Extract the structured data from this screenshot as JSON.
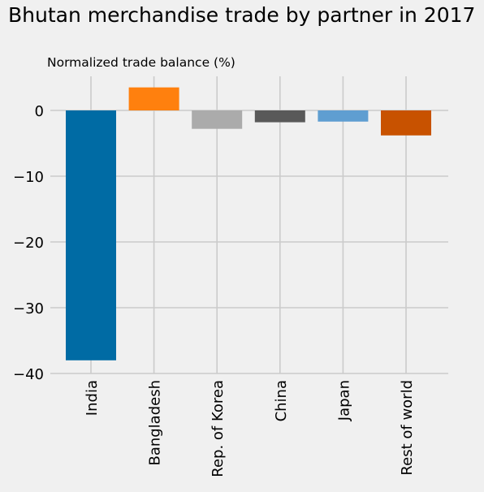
{
  "title": "Bhutan merchandise trade by partner in 2017",
  "chart_data": {
    "type": "bar",
    "title": "Bhutan merchandise trade by partner in 2017",
    "ylabel": "Normalized trade balance (%)",
    "xlabel": "",
    "categories": [
      "India",
      "Bangladesh",
      "Rep. of Korea",
      "China",
      "Japan",
      "Rest of world"
    ],
    "values": [
      -38.0,
      3.5,
      -2.8,
      -1.8,
      -1.7,
      -3.8
    ],
    "colors": [
      "#006ba4",
      "#ff800e",
      "#ababab",
      "#595959",
      "#5f9ed1",
      "#c85200"
    ],
    "ylim": [
      -40,
      5.2
    ],
    "yticks": [
      -40,
      -30,
      -20,
      -10,
      0
    ],
    "ytick_labels": [
      "−40",
      "−30",
      "−20",
      "−10",
      "0"
    ],
    "grid": true,
    "legend": "none"
  }
}
